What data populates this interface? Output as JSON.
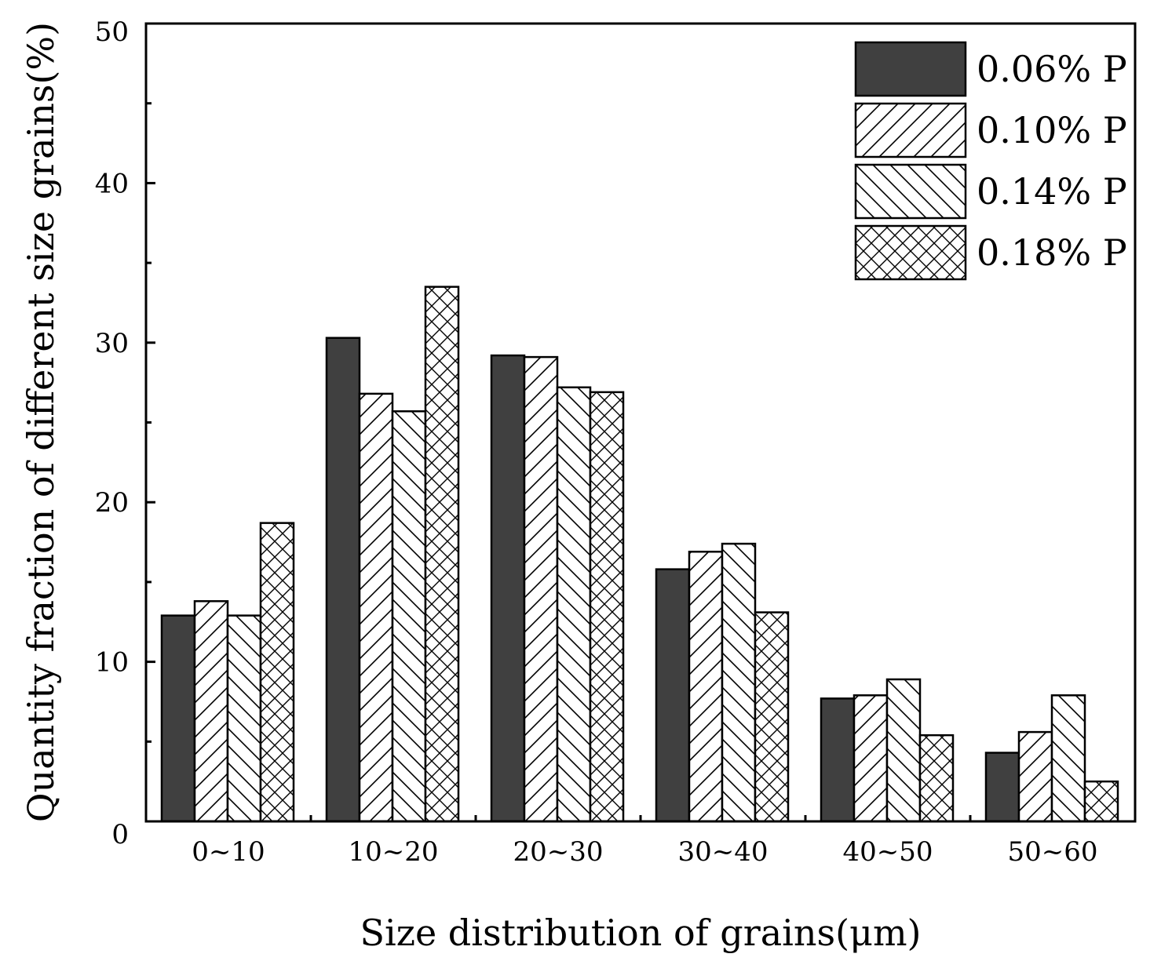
{
  "chart_data": {
    "type": "bar",
    "title": "",
    "xlabel": "Size distribution of grains(μm)",
    "ylabel": "Quantity fraction of different size grains(%)",
    "ylim": [
      0,
      50
    ],
    "yticks": [
      "0",
      "10",
      "20",
      "30",
      "40",
      "50"
    ],
    "categories": [
      "0~10",
      "10~20",
      "20~30",
      "30~40",
      "40~50",
      "50~60"
    ],
    "legend_position": "top-right",
    "series": [
      {
        "name": "0.06% P",
        "pattern": "solid",
        "values": [
          12.9,
          30.3,
          29.2,
          15.8,
          7.7,
          4.3
        ]
      },
      {
        "name": "0.10% P",
        "pattern": "hatch-forward",
        "values": [
          13.8,
          26.8,
          29.1,
          16.9,
          7.9,
          5.6
        ]
      },
      {
        "name": "0.14% P",
        "pattern": "hatch-backward",
        "values": [
          12.9,
          25.7,
          27.2,
          17.4,
          8.9,
          7.9
        ]
      },
      {
        "name": "0.18% P",
        "pattern": "crosshatch",
        "values": [
          18.7,
          33.5,
          26.9,
          13.1,
          5.4,
          2.5
        ]
      }
    ],
    "colors": {
      "solid": "#404040",
      "outline": "#000000",
      "hatch": "#000000",
      "background": "#ffffff"
    }
  }
}
